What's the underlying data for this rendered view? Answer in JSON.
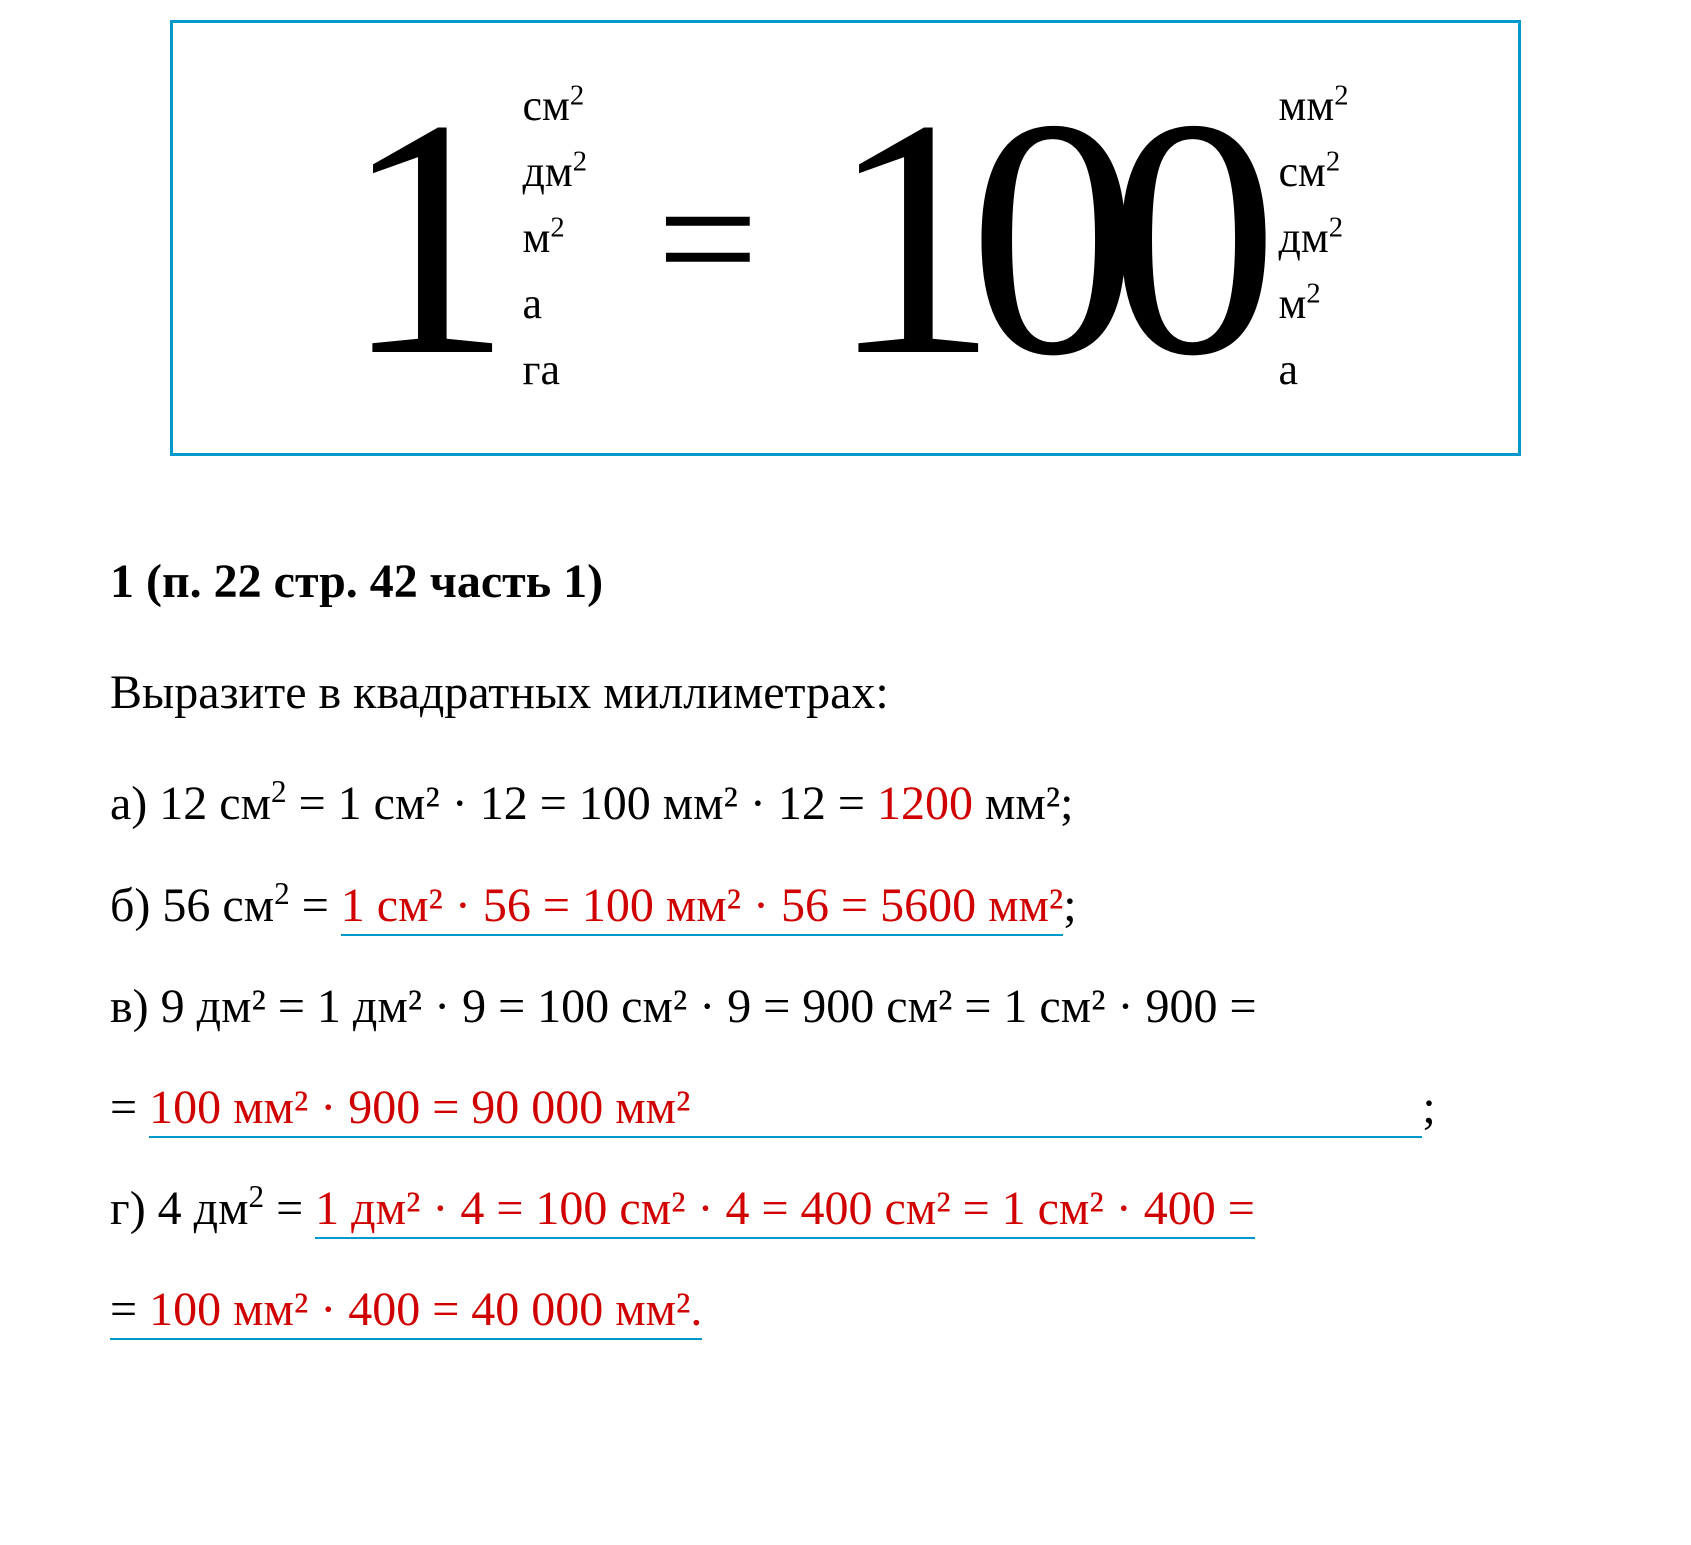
{
  "formula_box": {
    "border_color": "#0099cc",
    "left_number": "1",
    "left_units": [
      "см",
      "дм",
      "м",
      "а",
      "га"
    ],
    "left_units_sup": [
      "2",
      "2",
      "2",
      "",
      ""
    ],
    "equals": "=",
    "right_number": "100",
    "right_units": [
      "мм",
      "см",
      "дм",
      "м",
      "а"
    ],
    "right_units_sup": [
      "2",
      "2",
      "2",
      "2",
      ""
    ],
    "big_number_fontsize": 340,
    "unit_fontsize": 44,
    "equals_fontsize": 180
  },
  "content": {
    "heading": "1 (п. 22 стр. 42 часть 1)",
    "prompt": "Выразите в квадратных миллиметрах:",
    "answer_color": "#d00000",
    "underline_color": "#0099cc",
    "text_fontsize": 48,
    "items": {
      "a": {
        "prefix": "а) 12 см",
        "black_part": " = 1 см² · 12 = 100 мм² · 12 = ",
        "red_part": "1200",
        "suffix": " мм²;"
      },
      "b": {
        "prefix": "б) 56 см",
        "black_eq": " = ",
        "red_under": "1 см² · 56 = 100 мм² · 56 = 5600 мм²",
        "suffix": ";"
      },
      "v": {
        "line1": "в) 9 дм² = 1 дм² · 9 = 100 см² · 9 = 900 см² = 1 см² · 900 =",
        "line2_eq": "= ",
        "line2_red": "100 мм² · 900 = 90 000 мм²",
        "line2_suffix": ";"
      },
      "g": {
        "line1_prefix": "г) 4 дм",
        "line1_eq": " = ",
        "line1_red": "1 дм² · 4 = 100 см² · 4 = 400 см² = 1 см² · 400 =",
        "line2_eq": "= ",
        "line2_red": "100 мм² · 400 = 40 000 мм²."
      }
    }
  }
}
